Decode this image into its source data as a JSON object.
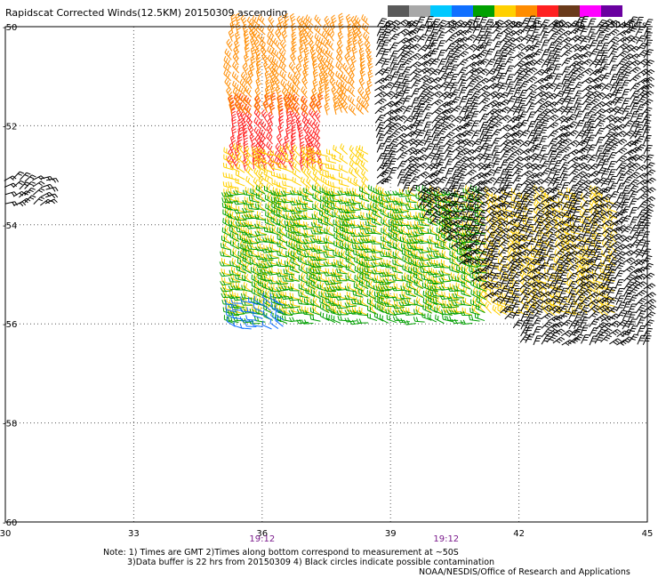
{
  "title": "Rapidscat Corrected Winds(12.5KM) 20150309 ascending",
  "colorbar": {
    "labels": [
      "0",
      "5",
      "10",
      "15",
      "20",
      "25",
      "30",
      "35",
      "40",
      "45",
      ">50 knots"
    ],
    "colors": [
      "#5a5a5a",
      "#a8a8a8",
      "#00c8ff",
      "#1070ff",
      "#00a000",
      "#ffd000",
      "#ff8c00",
      "#ff2020",
      "#6a3a1a",
      "#ff00ff",
      "#6a00a0"
    ]
  },
  "time_labels": [
    {
      "lon": 36,
      "text": "19:12"
    },
    {
      "lon": 40.3,
      "text": "19:12"
    }
  ],
  "notes": [
    "Note: 1) Times are GMT 2)Times along bottom correspond to measurement at ~50S",
    "3)Data buffer is 22 hrs from 20150309 4) Black circles indicate possible contamination",
    "NOAA/NESDIS/Office of Research and Applications"
  ],
  "chart_data": {
    "type": "scatter",
    "subtype": "wind-barbs",
    "title": "Rapidscat Corrected Winds(12.5KM) 20150309 ascending",
    "units": "knots",
    "xlim": [
      30,
      45
    ],
    "ylim": [
      -60,
      -50
    ],
    "xticks": [
      30,
      33,
      36,
      39,
      42,
      45
    ],
    "yticks": [
      -50,
      -52,
      -54,
      -56,
      -58,
      -60
    ],
    "ytick_labels": [
      "-50",
      "-52",
      "-54",
      "-56",
      "-58",
      "-60"
    ],
    "grid": true,
    "series": [
      {
        "category": "red (30-35 kt)",
        "color": "#ff2020",
        "region": {
          "lon": [
            35.3,
            37.5
          ],
          "lat": [
            -53.0,
            -51.6
          ]
        },
        "speed_kt": 32,
        "dir_deg": 335
      },
      {
        "category": "orange (25-30 kt)",
        "color": "#ff8c00",
        "region": {
          "lon": [
            35.3,
            38.6
          ],
          "lat": [
            -51.8,
            -50.0
          ]
        },
        "speed_kt": 27,
        "dir_deg": 330
      },
      {
        "category": "yellow (20-25 kt)",
        "color": "#ffd000",
        "region": {
          "lon": [
            35.3,
            44.3
          ],
          "lat": [
            -55.9,
            -52.6
          ]
        },
        "speed_kt": 22,
        "dir_deg": 300
      },
      {
        "category": "green (15-20 kt)",
        "color": "#00a000",
        "region": {
          "lon": [
            35.3,
            41.3
          ],
          "lat": [
            -56.0,
            -53.4
          ]
        },
        "speed_kt": 17,
        "dir_deg": 280
      },
      {
        "category": "blue (10-15 kt)",
        "color": "#1070ff",
        "region": {
          "lon": [
            35.4,
            36.6
          ],
          "lat": [
            -56.2,
            -55.6
          ]
        },
        "speed_kt": 12,
        "dir_deg": 290
      },
      {
        "category": "black (possible contamination)",
        "color": "#000000",
        "region": {
          "lon": [
            38.5,
            45.0
          ],
          "lat": [
            -56.4,
            -50.0
          ]
        },
        "speed_kt": 25,
        "dir_deg": 40
      },
      {
        "category": "black (west swath)",
        "color": "#000000",
        "region": {
          "lon": [
            30.0,
            31.0
          ],
          "lat": [
            -53.6,
            -53.1
          ]
        },
        "speed_kt": 20,
        "dir_deg": 60
      }
    ]
  }
}
